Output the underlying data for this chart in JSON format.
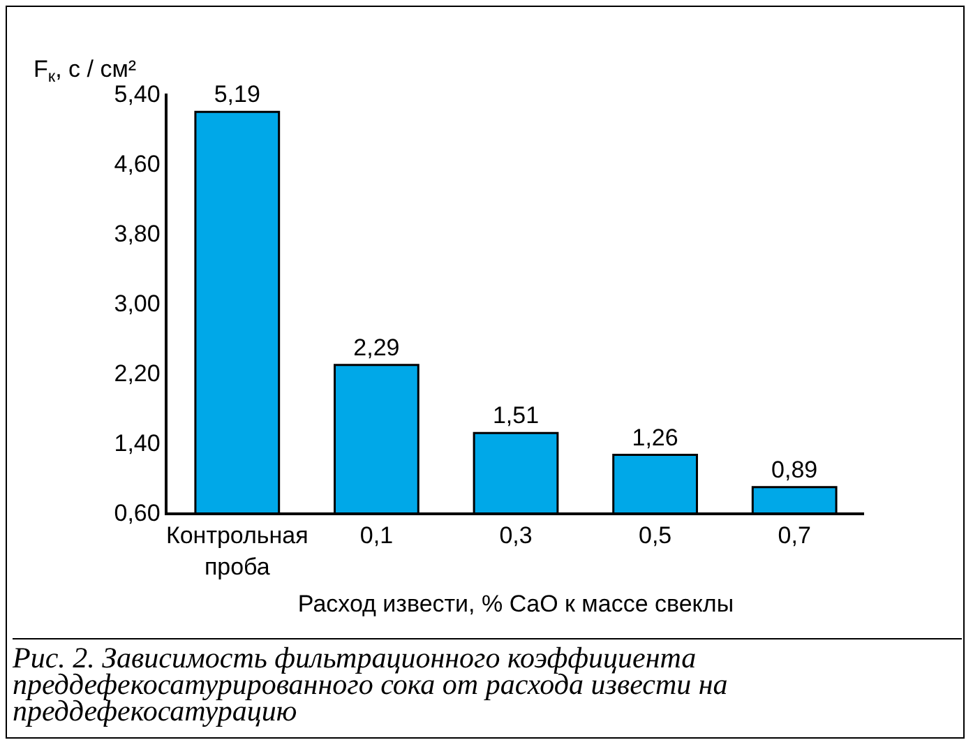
{
  "chart_data": {
    "type": "bar",
    "ylabel": "F$_{к}$, с / см²",
    "xlabel": "Расход извести, % CaO к массе свеклы",
    "categories": [
      "Контрольная проба",
      "0,1",
      "0,3",
      "0,5",
      "0,7"
    ],
    "values": [
      5.19,
      2.29,
      1.51,
      1.26,
      0.89
    ],
    "value_labels": [
      "5,19",
      "2,29",
      "1,51",
      "1,26",
      "0,89"
    ],
    "color": "#00a8e8",
    "ylim": [
      0.6,
      5.4
    ],
    "yticks": [
      {
        "value": 0.6,
        "label": "0,60"
      },
      {
        "value": 1.4,
        "label": "1,40"
      },
      {
        "value": 2.2,
        "label": "2,20"
      },
      {
        "value": 3.0,
        "label": "3,00"
      },
      {
        "value": 3.8,
        "label": "3,80"
      },
      {
        "value": 4.6,
        "label": "4,60"
      },
      {
        "value": 5.4,
        "label": "5,40"
      }
    ],
    "grid": false,
    "legend": false,
    "annotations": [
      "Рис. 2. Зависимость фильтрационного коэффициента преддефекосатурированного сока от расхода извести на преддефекосатурацию"
    ]
  }
}
